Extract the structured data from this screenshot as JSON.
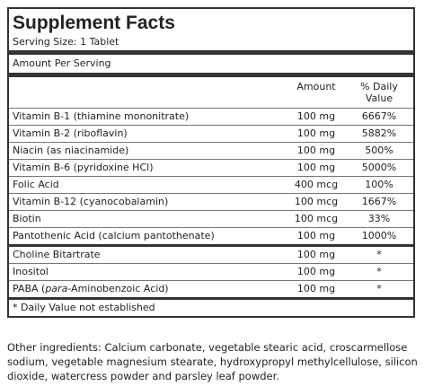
{
  "header": {
    "title": "Supplement Facts",
    "serving_size": "Serving Size: 1 Tablet"
  },
  "amount_per_serving": "Amount Per Serving",
  "columns": {
    "amount": "Amount",
    "daily_value": "% Daily Value"
  },
  "sections": [
    {
      "rows": [
        {
          "name": "Vitamin B-1 (thiamine mononitrate)",
          "amount": "100 mg",
          "daily_value": "6667%"
        },
        {
          "name": "Vitamin B-2 (riboflavin)",
          "amount": "100 mg",
          "daily_value": "5882%"
        },
        {
          "name": "Niacin (as niacinamide)",
          "amount": "100 mg",
          "daily_value": "500%"
        },
        {
          "name": "Vitamin B-6 (pyridoxine HCl)",
          "amount": "100 mg",
          "daily_value": "5000%"
        },
        {
          "name": "Folic Acid",
          "amount": "400 mcg",
          "daily_value": "100%"
        },
        {
          "name": "Vitamin B-12 (cyanocobalamin)",
          "amount": "100 mcg",
          "daily_value": "1667%"
        },
        {
          "name": "Biotin",
          "amount": "100 mcg",
          "daily_value": "33%"
        },
        {
          "name": "Pantothenic Acid (calcium pantothenate)",
          "amount": "100 mg",
          "daily_value": "1000%"
        }
      ]
    },
    {
      "rows": [
        {
          "name": "Choline Bitartrate",
          "amount": "100 mg",
          "daily_value": "*"
        },
        {
          "name": "Inositol",
          "amount": "100 mg",
          "daily_value": "*"
        },
        {
          "name": [
            "PABA (",
            "para",
            "-Aminobenzoic Acid)"
          ],
          "amount": "100 mg",
          "daily_value": "*"
        }
      ]
    }
  ],
  "footnote": "* Daily Value not established",
  "other_ingredients": "Other ingredients: Calcium carbonate, vegetable stearic acid, croscarmellose sodium, vegetable magnesium stearate, hydroxypropyl methylcellulose, silicon dioxide, watercress powder and parsley leaf powder."
}
